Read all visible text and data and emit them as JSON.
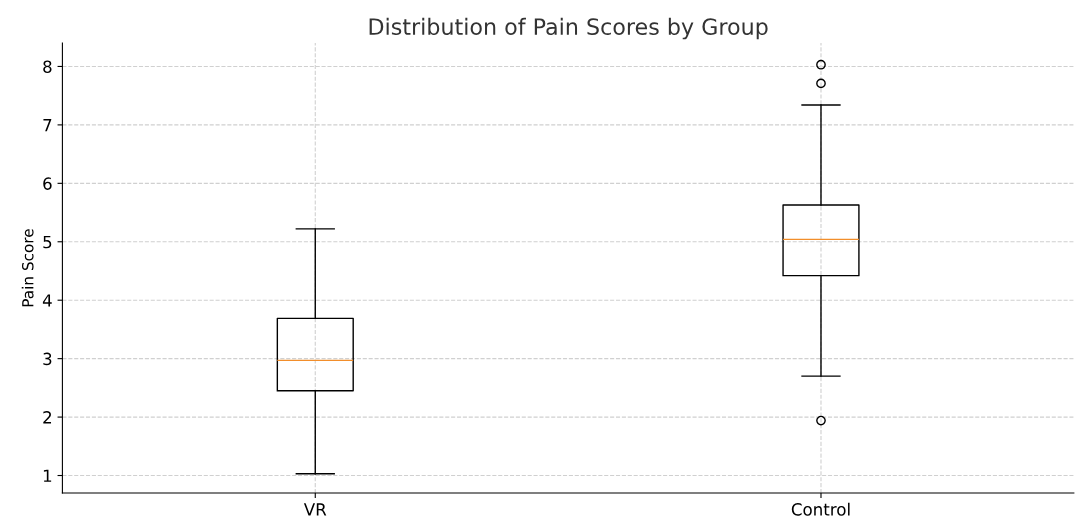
{
  "chart_data": {
    "type": "box",
    "title": "Distribution of Pain Scores by Group",
    "ylabel": "Pain Score",
    "categories": [
      "VR",
      "Control"
    ],
    "boxes": [
      {
        "low": 1.03,
        "q1": 2.45,
        "median": 2.97,
        "q3": 3.69,
        "high": 5.22
      },
      {
        "low": 2.7,
        "q1": 4.42,
        "median": 5.04,
        "q3": 5.63,
        "high": 7.34,
        "outliers": [
          8.03,
          7.71,
          1.94
        ]
      }
    ],
    "ylim": [
      0.7,
      8.4
    ],
    "yticks": [
      1,
      2,
      3,
      4,
      5,
      6,
      7,
      8
    ],
    "grid": true
  }
}
